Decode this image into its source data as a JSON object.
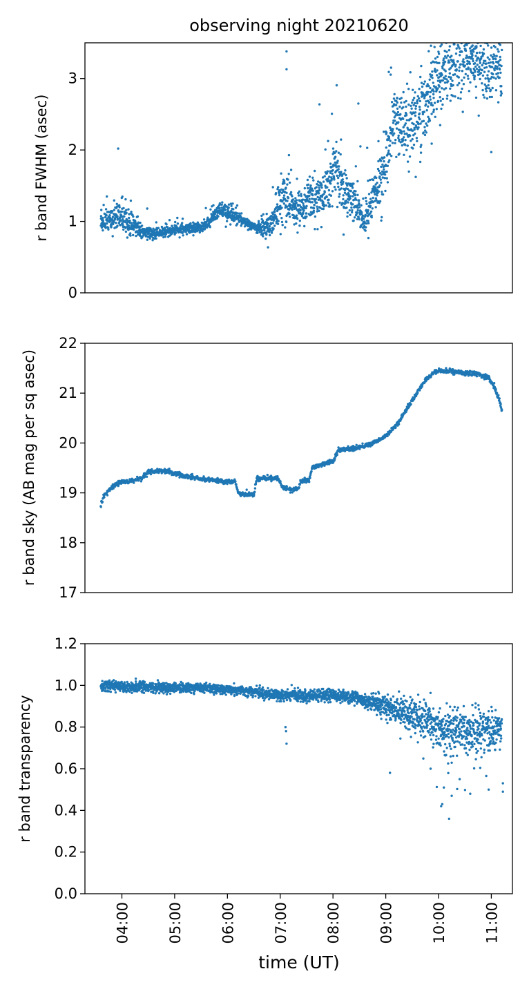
{
  "figure_title": "observing night 20210620",
  "x_axis": {
    "label": "time (UT)",
    "range_hours": [
      3.3,
      11.4
    ],
    "ticks": [
      {
        "hour": 4,
        "label": "04:00"
      },
      {
        "hour": 5,
        "label": "05:00"
      },
      {
        "hour": 6,
        "label": "06:00"
      },
      {
        "hour": 7,
        "label": "07:00"
      },
      {
        "hour": 8,
        "label": "08:00"
      },
      {
        "hour": 9,
        "label": "09:00"
      },
      {
        "hour": 10,
        "label": "10:00"
      },
      {
        "hour": 11,
        "label": "11:00"
      }
    ]
  },
  "colors": {
    "points": "#1f77b4",
    "axes": "#000000",
    "background": "#ffffff"
  },
  "chart_data": [
    {
      "type": "scatter",
      "id": "fwhm",
      "ylabel": "r band FWHM (asec)",
      "ylim": [
        0,
        3.5
      ],
      "yticks": [
        {
          "v": 0,
          "label": "0"
        },
        {
          "v": 1,
          "label": "1"
        },
        {
          "v": 2,
          "label": "2"
        },
        {
          "v": 3,
          "label": "3"
        }
      ],
      "trend": [
        [
          3.6,
          1.0
        ],
        [
          3.8,
          1.02
        ],
        [
          4.0,
          1.08
        ],
        [
          4.2,
          0.95
        ],
        [
          4.4,
          0.85
        ],
        [
          4.6,
          0.82
        ],
        [
          4.8,
          0.85
        ],
        [
          5.0,
          0.88
        ],
        [
          5.2,
          0.9
        ],
        [
          5.4,
          0.9
        ],
        [
          5.6,
          0.95
        ],
        [
          5.7,
          1.05
        ],
        [
          5.85,
          1.18
        ],
        [
          6.0,
          1.12
        ],
        [
          6.2,
          1.05
        ],
        [
          6.4,
          0.95
        ],
        [
          6.6,
          0.9
        ],
        [
          6.8,
          0.95
        ],
        [
          6.95,
          1.15
        ],
        [
          7.1,
          1.3
        ],
        [
          7.3,
          1.1
        ],
        [
          7.5,
          1.35
        ],
        [
          7.7,
          1.3
        ],
        [
          7.9,
          1.5
        ],
        [
          8.05,
          1.7
        ],
        [
          8.2,
          1.4
        ],
        [
          8.4,
          1.3
        ],
        [
          8.6,
          1.0
        ],
        [
          8.75,
          1.35
        ],
        [
          8.9,
          1.55
        ],
        [
          9.0,
          1.85
        ],
        [
          9.15,
          2.4
        ],
        [
          9.3,
          2.3
        ],
        [
          9.5,
          2.3
        ],
        [
          9.7,
          2.55
        ],
        [
          9.9,
          2.9
        ],
        [
          10.1,
          3.1
        ],
        [
          10.3,
          3.2
        ],
        [
          10.5,
          3.3
        ],
        [
          10.7,
          3.25
        ],
        [
          10.9,
          3.1
        ],
        [
          11.2,
          3.2
        ]
      ],
      "scatter_width": [
        [
          3.6,
          0.1
        ],
        [
          4.1,
          0.18
        ],
        [
          4.4,
          0.06
        ],
        [
          5.5,
          0.06
        ],
        [
          6.0,
          0.1
        ],
        [
          6.5,
          0.05
        ],
        [
          7.0,
          0.25
        ],
        [
          7.5,
          0.2
        ],
        [
          8.0,
          0.35
        ],
        [
          8.5,
          0.2
        ],
        [
          9.0,
          0.35
        ],
        [
          9.5,
          0.45
        ],
        [
          10.0,
          0.45
        ],
        [
          11.2,
          0.35
        ]
      ],
      "outliers": [
        {
          "x": 7.12,
          "y": 3.38
        },
        {
          "x": 7.12,
          "y": 3.13
        },
        {
          "x": 3.93,
          "y": 2.02
        },
        {
          "x": 8.48,
          "y": 2.65
        },
        {
          "x": 8.52,
          "y": 2.05
        },
        {
          "x": 11.0,
          "y": 1.97
        },
        {
          "x": 4.48,
          "y": 1.18
        }
      ]
    },
    {
      "type": "scatter",
      "id": "sky",
      "ylabel": "r band sky (AB mag per sq asec)",
      "ylim": [
        17,
        22
      ],
      "yticks": [
        {
          "v": 17,
          "label": "17"
        },
        {
          "v": 18,
          "label": "18"
        },
        {
          "v": 19,
          "label": "19"
        },
        {
          "v": 20,
          "label": "20"
        },
        {
          "v": 21,
          "label": "21"
        },
        {
          "v": 22,
          "label": "22"
        }
      ],
      "trend": [
        [
          3.6,
          18.73
        ],
        [
          3.65,
          18.92
        ],
        [
          3.75,
          19.05
        ],
        [
          3.85,
          19.15
        ],
        [
          4.0,
          19.22
        ],
        [
          4.2,
          19.24
        ],
        [
          4.4,
          19.3
        ],
        [
          4.5,
          19.42
        ],
        [
          4.7,
          19.45
        ],
        [
          4.85,
          19.45
        ],
        [
          5.0,
          19.38
        ],
        [
          5.2,
          19.33
        ],
        [
          5.5,
          19.28
        ],
        [
          5.8,
          19.25
        ],
        [
          6.0,
          19.22
        ],
        [
          6.15,
          19.22
        ],
        [
          6.2,
          18.98
        ],
        [
          6.5,
          18.95
        ],
        [
          6.55,
          19.28
        ],
        [
          6.75,
          19.3
        ],
        [
          6.85,
          19.28
        ],
        [
          6.95,
          19.3
        ],
        [
          7.05,
          19.12
        ],
        [
          7.25,
          19.05
        ],
        [
          7.35,
          19.1
        ],
        [
          7.4,
          19.25
        ],
        [
          7.55,
          19.25
        ],
        [
          7.6,
          19.5
        ],
        [
          7.8,
          19.58
        ],
        [
          8.0,
          19.62
        ],
        [
          8.1,
          19.85
        ],
        [
          8.45,
          19.9
        ],
        [
          8.65,
          19.95
        ],
        [
          8.95,
          20.1
        ],
        [
          9.2,
          20.35
        ],
        [
          9.5,
          20.85
        ],
        [
          9.75,
          21.25
        ],
        [
          9.95,
          21.45
        ],
        [
          10.2,
          21.45
        ],
        [
          10.5,
          21.4
        ],
        [
          10.8,
          21.38
        ],
        [
          10.95,
          21.3
        ],
        [
          11.05,
          21.15
        ],
        [
          11.15,
          20.85
        ],
        [
          11.2,
          20.67
        ]
      ],
      "scatter_width": [
        [
          3.6,
          0.04
        ],
        [
          11.2,
          0.04
        ]
      ],
      "outliers": []
    },
    {
      "type": "scatter",
      "id": "transparency",
      "ylabel": "r band transparency",
      "ylim": [
        0.0,
        1.2
      ],
      "yticks": [
        {
          "v": 0.0,
          "label": "0.0"
        },
        {
          "v": 0.2,
          "label": "0.2"
        },
        {
          "v": 0.4,
          "label": "0.4"
        },
        {
          "v": 0.6,
          "label": "0.6"
        },
        {
          "v": 0.8,
          "label": "0.8"
        },
        {
          "v": 1.0,
          "label": "1.0"
        },
        {
          "v": 1.2,
          "label": "1.2"
        }
      ],
      "trend": [
        [
          3.6,
          1.0
        ],
        [
          4.5,
          0.99
        ],
        [
          5.3,
          0.99
        ],
        [
          6.0,
          0.98
        ],
        [
          6.5,
          0.97
        ],
        [
          7.0,
          0.95
        ],
        [
          7.5,
          0.95
        ],
        [
          8.0,
          0.95
        ],
        [
          8.5,
          0.94
        ],
        [
          9.0,
          0.9
        ],
        [
          9.3,
          0.88
        ],
        [
          9.6,
          0.85
        ],
        [
          9.9,
          0.82
        ],
        [
          10.2,
          0.78
        ],
        [
          10.6,
          0.78
        ],
        [
          11.2,
          0.78
        ]
      ],
      "scatter_width": [
        [
          3.6,
          0.022
        ],
        [
          6.0,
          0.018
        ],
        [
          8.5,
          0.025
        ],
        [
          9.0,
          0.05
        ],
        [
          9.6,
          0.07
        ],
        [
          10.2,
          0.09
        ],
        [
          11.2,
          0.08
        ]
      ],
      "outliers": [
        {
          "x": 7.12,
          "y": 0.72
        },
        {
          "x": 7.1,
          "y": 0.8
        },
        {
          "x": 7.11,
          "y": 0.78
        },
        {
          "x": 9.08,
          "y": 0.58
        },
        {
          "x": 10.05,
          "y": 0.42
        },
        {
          "x": 10.07,
          "y": 0.43
        },
        {
          "x": 10.1,
          "y": 0.51
        },
        {
          "x": 10.2,
          "y": 0.36
        },
        {
          "x": 10.25,
          "y": 0.47
        },
        {
          "x": 10.6,
          "y": 0.48
        },
        {
          "x": 10.95,
          "y": 0.5
        },
        {
          "x": 11.22,
          "y": 0.49
        },
        {
          "x": 11.22,
          "y": 0.53
        },
        {
          "x": 9.85,
          "y": 0.6
        },
        {
          "x": 10.4,
          "y": 0.55
        }
      ]
    }
  ]
}
